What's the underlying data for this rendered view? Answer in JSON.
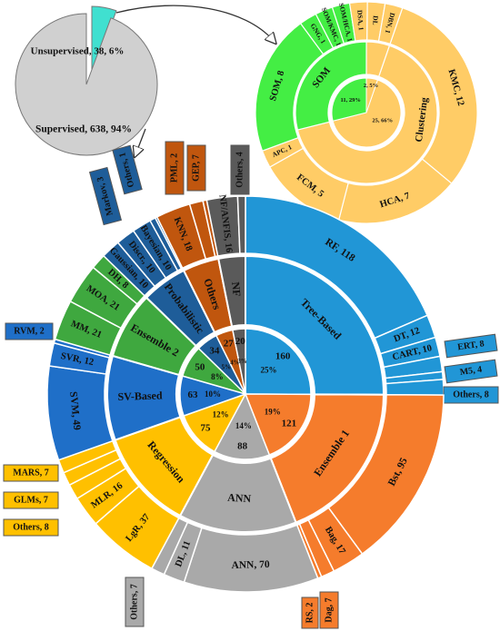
{
  "chart_data": [
    {
      "type": "pie",
      "slices": [
        {
          "label": "Unsupervised, 38, 6%",
          "value": 38,
          "color": "#40E0D0"
        },
        {
          "label": "Supervised, 638, 94%",
          "value": 638,
          "color": "#D0D0D0"
        }
      ]
    },
    {
      "type": "sunburst",
      "title": "",
      "inner": [
        {
          "label": "Clustering",
          "count_label": "25, 66%",
          "value": 25,
          "color": "#FFCC66"
        },
        {
          "label": "SOM",
          "count_label": "11, 29%",
          "value": 11,
          "color": "#44EE44"
        },
        {
          "label": "",
          "count_label": "2, 5%",
          "value": 2,
          "color": "#FFCC66"
        }
      ],
      "outer": [
        {
          "label": "KMC, 12",
          "value": 12,
          "color": "#FFCC66"
        },
        {
          "label": "HCA, 7",
          "value": 7,
          "color": "#FFCC66"
        },
        {
          "label": "FCM, 5",
          "value": 5,
          "color": "#FFCC66"
        },
        {
          "label": "APC, 1",
          "value": 1,
          "color": "#FFCC66"
        },
        {
          "label": "SOM, 8",
          "value": 8,
          "color": "#44EE44"
        },
        {
          "label": "GNG, 1",
          "value": 1,
          "color": "#44EE44"
        },
        {
          "label": "SOM/KMC, 1",
          "value": 1,
          "color": "#44EE44"
        },
        {
          "label": "SOM/HCA, 1",
          "value": 1,
          "color": "#44EE44"
        },
        {
          "label": "DSA, 1",
          "value": 1,
          "color": "#FFCC66"
        },
        {
          "label": "DL",
          "value": 1,
          "color": "#FFCC66"
        },
        {
          "label": "DBN, 1",
          "value": 1,
          "color": "#FFCC66"
        }
      ]
    },
    {
      "type": "sunburst",
      "title": "",
      "groups": [
        {
          "label": "Tree-Based",
          "value": 160,
          "pct": "25%",
          "color": "#2196D6",
          "children": [
            {
              "label": "RF, 118",
              "value": 118
            },
            {
              "label": "DT, 12",
              "value": 12
            },
            {
              "label": "CART, 10",
              "value": 10
            },
            {
              "label": "ERT, 8",
              "value": 8
            },
            {
              "label": "M5, 4",
              "value": 4
            },
            {
              "label": "Others, 8",
              "value": 8
            }
          ]
        },
        {
          "label": "Ensemble 1",
          "value": 121,
          "pct": "19%",
          "color": "#F57C2C",
          "children": [
            {
              "label": "Bst, 95",
              "value": 95
            },
            {
              "label": "Bag, 17",
              "value": 17
            },
            {
              "label": "Dag, 7",
              "value": 7
            },
            {
              "label": "RS, 2",
              "value": 2
            }
          ]
        },
        {
          "label": "ANN",
          "value": 88,
          "pct": "14%",
          "color": "#A9A9A9",
          "children": [
            {
              "label": "ANN, 70",
              "value": 70
            },
            {
              "label": "DL, 11",
              "value": 11
            },
            {
              "label": "Others, 7",
              "value": 7
            }
          ]
        },
        {
          "label": "Regression",
          "value": 75,
          "pct": "12%",
          "color": "#FFC000",
          "children": [
            {
              "label": "LgR, 37",
              "value": 37
            },
            {
              "label": "MLR, 16",
              "value": 16
            },
            {
              "label": "Others, 8",
              "value": 8
            },
            {
              "label": "GLMs, 7",
              "value": 7
            },
            {
              "label": "MARS, 7",
              "value": 7
            }
          ]
        },
        {
          "label": "SV-Based",
          "value": 63,
          "pct": "10%",
          "color": "#1F6FC8",
          "children": [
            {
              "label": "SVM, 49",
              "value": 49
            },
            {
              "label": "SVR, 12",
              "value": 12
            },
            {
              "label": "RVM, 2",
              "value": 2
            }
          ]
        },
        {
          "label": "Ensemble 2",
          "value": 50,
          "pct": "8%",
          "color": "#3FA83F",
          "children": [
            {
              "label": "MM, 21",
              "value": 21
            },
            {
              "label": "MOA, 21",
              "value": 21
            },
            {
              "label": "DH, 8",
              "value": 8
            }
          ]
        },
        {
          "label": "Probabilistic",
          "value": 34,
          "pct": "5%",
          "color": "#1E5D99",
          "children": [
            {
              "label": "Gaussian, 10",
              "value": 10
            },
            {
              "label": "Discr., 10",
              "value": 10
            },
            {
              "label": "Bayesian, 10",
              "value": 10
            },
            {
              "label": "Markov, 3",
              "value": 3
            },
            {
              "label": "Others, 1",
              "value": 1
            }
          ]
        },
        {
          "label": "Others",
          "value": 27,
          "pct": "4%",
          "color": "#C0560E",
          "children": [
            {
              "label": "KNN, 18",
              "value": 18
            },
            {
              "label": "GEP, 7",
              "value": 7
            },
            {
              "label": "PML, 2",
              "value": 2
            }
          ]
        },
        {
          "label": "NF",
          "value": 20,
          "pct": "3%",
          "color": "#5A5A5A",
          "children": [
            {
              "label": "NF/ANFIS, 16",
              "value": 16
            },
            {
              "label": "Others, 4",
              "value": 4
            }
          ]
        }
      ]
    }
  ]
}
